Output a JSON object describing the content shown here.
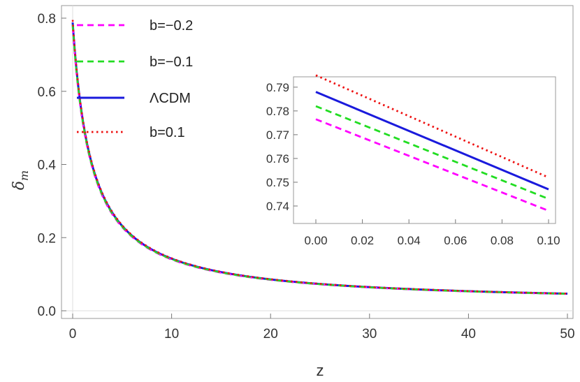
{
  "chart_data": [
    {
      "type": "line",
      "title": "",
      "xlabel": "z",
      "ylabel_base": "δ",
      "ylabel_sub": "m",
      "xlim": [
        0,
        50
      ],
      "ylim": [
        0,
        0.8
      ],
      "x_ticks": [
        "0",
        "10",
        "20",
        "30",
        "40",
        "50"
      ],
      "y_ticks": [
        "0.0",
        "0.2",
        "0.4",
        "0.6",
        "0.8"
      ],
      "legend_position": "top-left",
      "series": [
        {
          "name": "b=−0.2",
          "color": "#ff00ff",
          "dash": "dashed",
          "delta0": 0.7765,
          "x": [
            0,
            0.5,
            1,
            2,
            3,
            5,
            7,
            10,
            15,
            20,
            30,
            40,
            50
          ],
          "y": [
            0.7765,
            0.585,
            0.466,
            0.306,
            0.23,
            0.154,
            0.116,
            0.085,
            0.059,
            0.046,
            0.032,
            0.025,
            0.02
          ]
        },
        {
          "name": "b=−0.1",
          "color": "#22dd22",
          "dash": "dashed",
          "delta0": 0.782,
          "x": [
            0,
            0.5,
            1,
            2,
            3,
            5,
            7,
            10,
            15,
            20,
            30,
            40,
            50
          ],
          "y": [
            0.782,
            0.587,
            0.467,
            0.306,
            0.23,
            0.154,
            0.116,
            0.085,
            0.059,
            0.046,
            0.032,
            0.025,
            0.02
          ]
        },
        {
          "name": "ΛCDM",
          "color": "#1a1adc",
          "dash": "solid",
          "delta0": 0.788,
          "x": [
            0,
            0.5,
            1,
            2,
            3,
            5,
            7,
            10,
            15,
            20,
            30,
            40,
            50
          ],
          "y": [
            0.788,
            0.589,
            0.468,
            0.307,
            0.23,
            0.154,
            0.116,
            0.085,
            0.059,
            0.046,
            0.032,
            0.025,
            0.02
          ]
        },
        {
          "name": "b=0.1",
          "color": "#ee1111",
          "dash": "dotted",
          "delta0": 0.795,
          "x": [
            0,
            0.5,
            1,
            2,
            3,
            5,
            7,
            10,
            15,
            20,
            30,
            40,
            50
          ],
          "y": [
            0.795,
            0.591,
            0.469,
            0.307,
            0.231,
            0.154,
            0.116,
            0.085,
            0.059,
            0.046,
            0.032,
            0.025,
            0.02
          ]
        }
      ]
    },
    {
      "type": "line",
      "title": "",
      "xlabel": "",
      "ylabel": "",
      "xlim": [
        0,
        0.1
      ],
      "ylim": [
        0.735,
        0.792
      ],
      "x_ticks": [
        "0.00",
        "0.02",
        "0.04",
        "0.06",
        "0.08",
        "0.10"
      ],
      "y_ticks": [
        "0.74",
        "0.75",
        "0.76",
        "0.77",
        "0.78",
        "0.79"
      ],
      "series": [
        {
          "name": "b=−0.2",
          "color": "#ff00ff",
          "dash": "dashed",
          "x": [
            0,
            0.1
          ],
          "y": [
            0.7765,
            0.738
          ]
        },
        {
          "name": "b=−0.1",
          "color": "#22dd22",
          "dash": "dashed",
          "x": [
            0,
            0.1
          ],
          "y": [
            0.782,
            0.743
          ]
        },
        {
          "name": "ΛCDM",
          "color": "#1a1adc",
          "dash": "solid",
          "x": [
            0,
            0.1
          ],
          "y": [
            0.788,
            0.747
          ]
        },
        {
          "name": "b=0.1",
          "color": "#ee1111",
          "dash": "dotted",
          "x": [
            0,
            0.1
          ],
          "y": [
            0.795,
            0.752
          ]
        }
      ]
    }
  ]
}
